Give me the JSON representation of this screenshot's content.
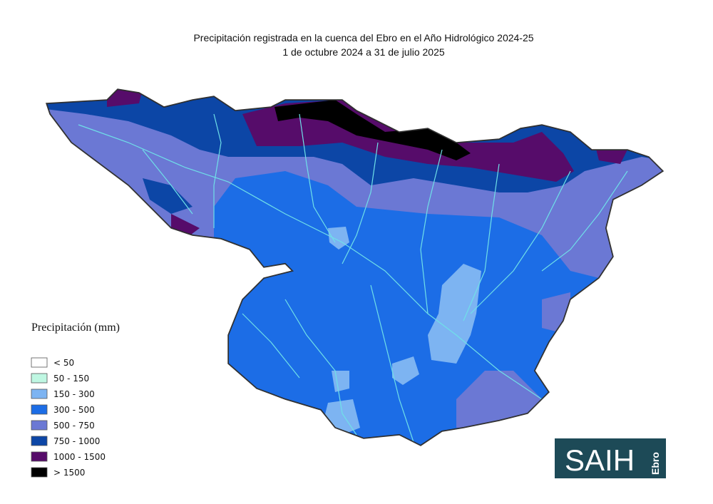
{
  "title": "Precipitación registrada en la cuenca del Ebro en el Año Hidrológico 2024-25",
  "subtitle": "1 de octubre 2024 a 31 de julio 2025",
  "legend": {
    "title": "Precipitación (mm)",
    "items": [
      {
        "label": "< 50",
        "color": "#ffffff"
      },
      {
        "label": "50 - 150",
        "color": "#bff7e2"
      },
      {
        "label": "150 - 300",
        "color": "#7db4f2"
      },
      {
        "label": "300 - 500",
        "color": "#1c6de6"
      },
      {
        "label": "500 - 750",
        "color": "#6b78d4"
      },
      {
        "label": "750 - 1000",
        "color": "#0c46a6"
      },
      {
        "label": "1000 - 1500",
        "color": "#560c6a"
      },
      {
        "label": "> 1500",
        "color": "#000000"
      }
    ]
  },
  "logo": {
    "text": "SAIH",
    "subtext": "Ebro"
  }
}
